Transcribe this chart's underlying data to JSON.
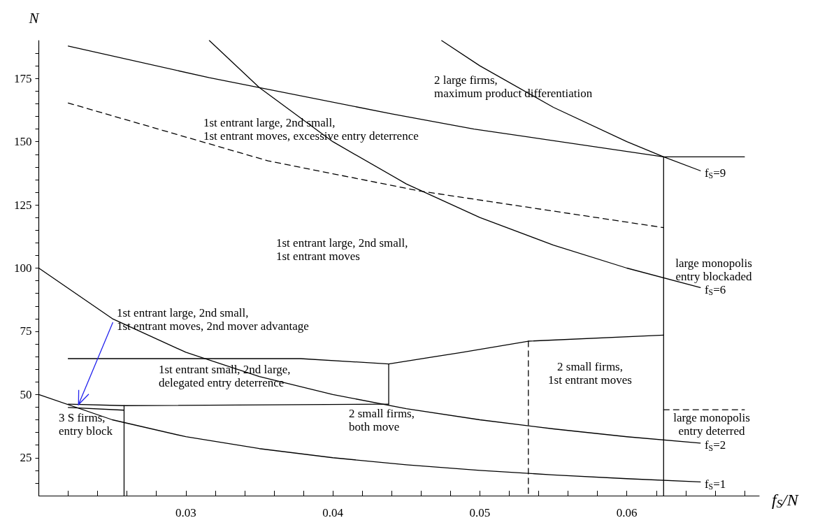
{
  "chart_data": {
    "type": "line",
    "xlabel": "f$_{S}$/N",
    "ylabel": "N",
    "xlim": [
      0.02,
      0.069
    ],
    "ylim": [
      10,
      190
    ],
    "xticks": [
      {
        "value": 0.022,
        "label": null
      },
      {
        "value": 0.024,
        "label": null
      },
      {
        "value": 0.026,
        "label": null
      },
      {
        "value": 0.028,
        "label": null
      },
      0.03,
      {
        "value": 0.032,
        "label": null
      },
      {
        "value": 0.034,
        "label": null
      },
      {
        "value": 0.036,
        "label": null
      },
      {
        "value": 0.038,
        "label": null
      },
      0.04,
      {
        "value": 0.042,
        "label": null
      },
      {
        "value": 0.044,
        "label": null
      },
      {
        "value": 0.046,
        "label": null
      },
      {
        "value": 0.048,
        "label": null
      },
      0.05,
      {
        "value": 0.052,
        "label": null
      },
      {
        "value": 0.054,
        "label": null
      },
      {
        "value": 0.056,
        "label": null
      },
      {
        "value": 0.058,
        "label": null
      },
      0.06,
      {
        "value": 0.062,
        "label": null
      },
      {
        "value": 0.064,
        "label": null
      },
      {
        "value": 0.066,
        "label": null
      },
      {
        "value": 0.068,
        "label": null
      }
    ],
    "yticks": [
      {
        "value": 15,
        "label": null
      },
      {
        "value": 20,
        "label": null
      },
      25,
      {
        "value": 30,
        "label": null
      },
      {
        "value": 35,
        "label": null
      },
      {
        "value": 40,
        "label": null
      },
      {
        "value": 45,
        "label": null
      },
      50,
      {
        "value": 55,
        "label": null
      },
      {
        "value": 60,
        "label": null
      },
      {
        "value": 65,
        "label": null
      },
      {
        "value": 70,
        "label": null
      },
      75,
      {
        "value": 80,
        "label": null
      },
      {
        "value": 85,
        "label": null
      },
      {
        "value": 90,
        "label": null
      },
      {
        "value": 95,
        "label": null
      },
      100,
      {
        "value": 105,
        "label": null
      },
      {
        "value": 110,
        "label": null
      },
      {
        "value": 115,
        "label": null
      },
      {
        "value": 120,
        "label": null
      },
      125,
      {
        "value": 130,
        "label": null
      },
      {
        "value": 135,
        "label": null
      },
      {
        "value": 140,
        "label": null
      },
      {
        "value": 145,
        "label": null
      },
      150,
      {
        "value": 155,
        "label": null
      },
      {
        "value": 160,
        "label": null
      },
      {
        "value": 165,
        "label": null
      },
      {
        "value": 170,
        "label": null
      },
      175,
      {
        "value": 180,
        "label": null
      },
      {
        "value": 185,
        "label": null
      }
    ],
    "grid": false,
    "legend": false,
    "marker": "none",
    "line_style": "solid",
    "series": [
      {
        "name": "f$_{S}$=1",
        "color": "#000000",
        "x": [
          0.02,
          0.025,
          0.03,
          0.035,
          0.04,
          0.045,
          0.05,
          0.055,
          0.06,
          0.065
        ],
        "values": [
          50,
          40,
          33.3,
          28.6,
          25,
          22.2,
          20,
          18.2,
          16.7,
          15.4
        ]
      },
      {
        "name": "f$_{S}$=2",
        "color": "#000000",
        "x": [
          0.02,
          0.025,
          0.03,
          0.035,
          0.04,
          0.045,
          0.05,
          0.055,
          0.06,
          0.065
        ],
        "values": [
          100,
          80,
          66.7,
          57.1,
          50,
          44.4,
          40,
          36.4,
          33.3,
          30.8
        ]
      },
      {
        "name": "f$_{S}$=6",
        "color": "#000000",
        "x": [
          0.0316,
          0.035,
          0.04,
          0.045,
          0.05,
          0.055,
          0.06,
          0.065
        ],
        "values": [
          190,
          171.4,
          150,
          133.3,
          120,
          109.1,
          100,
          92.3
        ]
      },
      {
        "name": "f$_{S}$=9",
        "color": "#000000",
        "x": [
          0.0474,
          0.05,
          0.055,
          0.06,
          0.0625,
          0.065
        ],
        "values": [
          190,
          180,
          163.6,
          150,
          144,
          138.5
        ]
      },
      {
        "color": "#000000",
        "x": [
          0.022,
          0.0316,
          0.044,
          0.0496,
          0.0625,
          0.068
        ],
        "values": [
          187.8,
          175.3,
          161,
          155,
          144,
          144
        ]
      },
      {
        "color": "#000000",
        "line_style": "dashed",
        "x": [
          0.022,
          0.0356,
          0.0459,
          0.0625
        ],
        "values": [
          165.3,
          142.4,
          130.5,
          116
        ]
      },
      {
        "color": "#000000",
        "x": [
          0.0625,
          0.0625
        ],
        "values": [
          144,
          10
        ]
      },
      {
        "color": "#000000",
        "line_style": "dashed",
        "x": [
          0.0625,
          0.068
        ],
        "values": [
          44,
          44
        ]
      },
      {
        "color": "#000000",
        "line_style": "dashed",
        "x": [
          0.0533,
          0.0533
        ],
        "values": [
          71.1,
          10
        ]
      },
      {
        "color": "#000000",
        "x": [
          0.022,
          0.0378,
          0.0438,
          0.0487,
          0.0533,
          0.0625
        ],
        "values": [
          64.2,
          64.2,
          62.1,
          66.6,
          71.1,
          73.5
        ]
      },
      {
        "color": "#000000",
        "x": [
          0.0438,
          0.0438
        ],
        "values": [
          62.1,
          46.2
        ]
      },
      {
        "color": "#000000",
        "x": [
          0.022,
          0.0258,
          0.0438
        ],
        "values": [
          46.2,
          45.6,
          46.2
        ]
      },
      {
        "color": "#000000",
        "x": [
          0.0258,
          0.0258
        ],
        "values": [
          45.6,
          10
        ]
      },
      {
        "color": "#000000",
        "x": [
          0.022,
          0.0258
        ],
        "values": [
          44.9,
          43.8
        ]
      }
    ],
    "annotations": [
      "2 large firms,\nmaximum product differentiation",
      "1st entrant large, 2nd small,\n1st entrant moves, excessive entry deterrence",
      "1st entrant large, 2nd small,\n1st entrant moves",
      {
        "text": "1st entrant large, 2nd small,\n1st entrant moves, 2nd mover advantage",
        "x": 0.0227,
        "y": 46
      },
      "1st entrant small, 2nd large,\ndelegated entry deterrence",
      "2 small firms,\nboth move",
      "3 S firms,\nentry block",
      "2 small firms,\n1st entrant moves",
      "large monopolis\nentry blockaded",
      "large monopolis\nentry deterred"
    ]
  }
}
